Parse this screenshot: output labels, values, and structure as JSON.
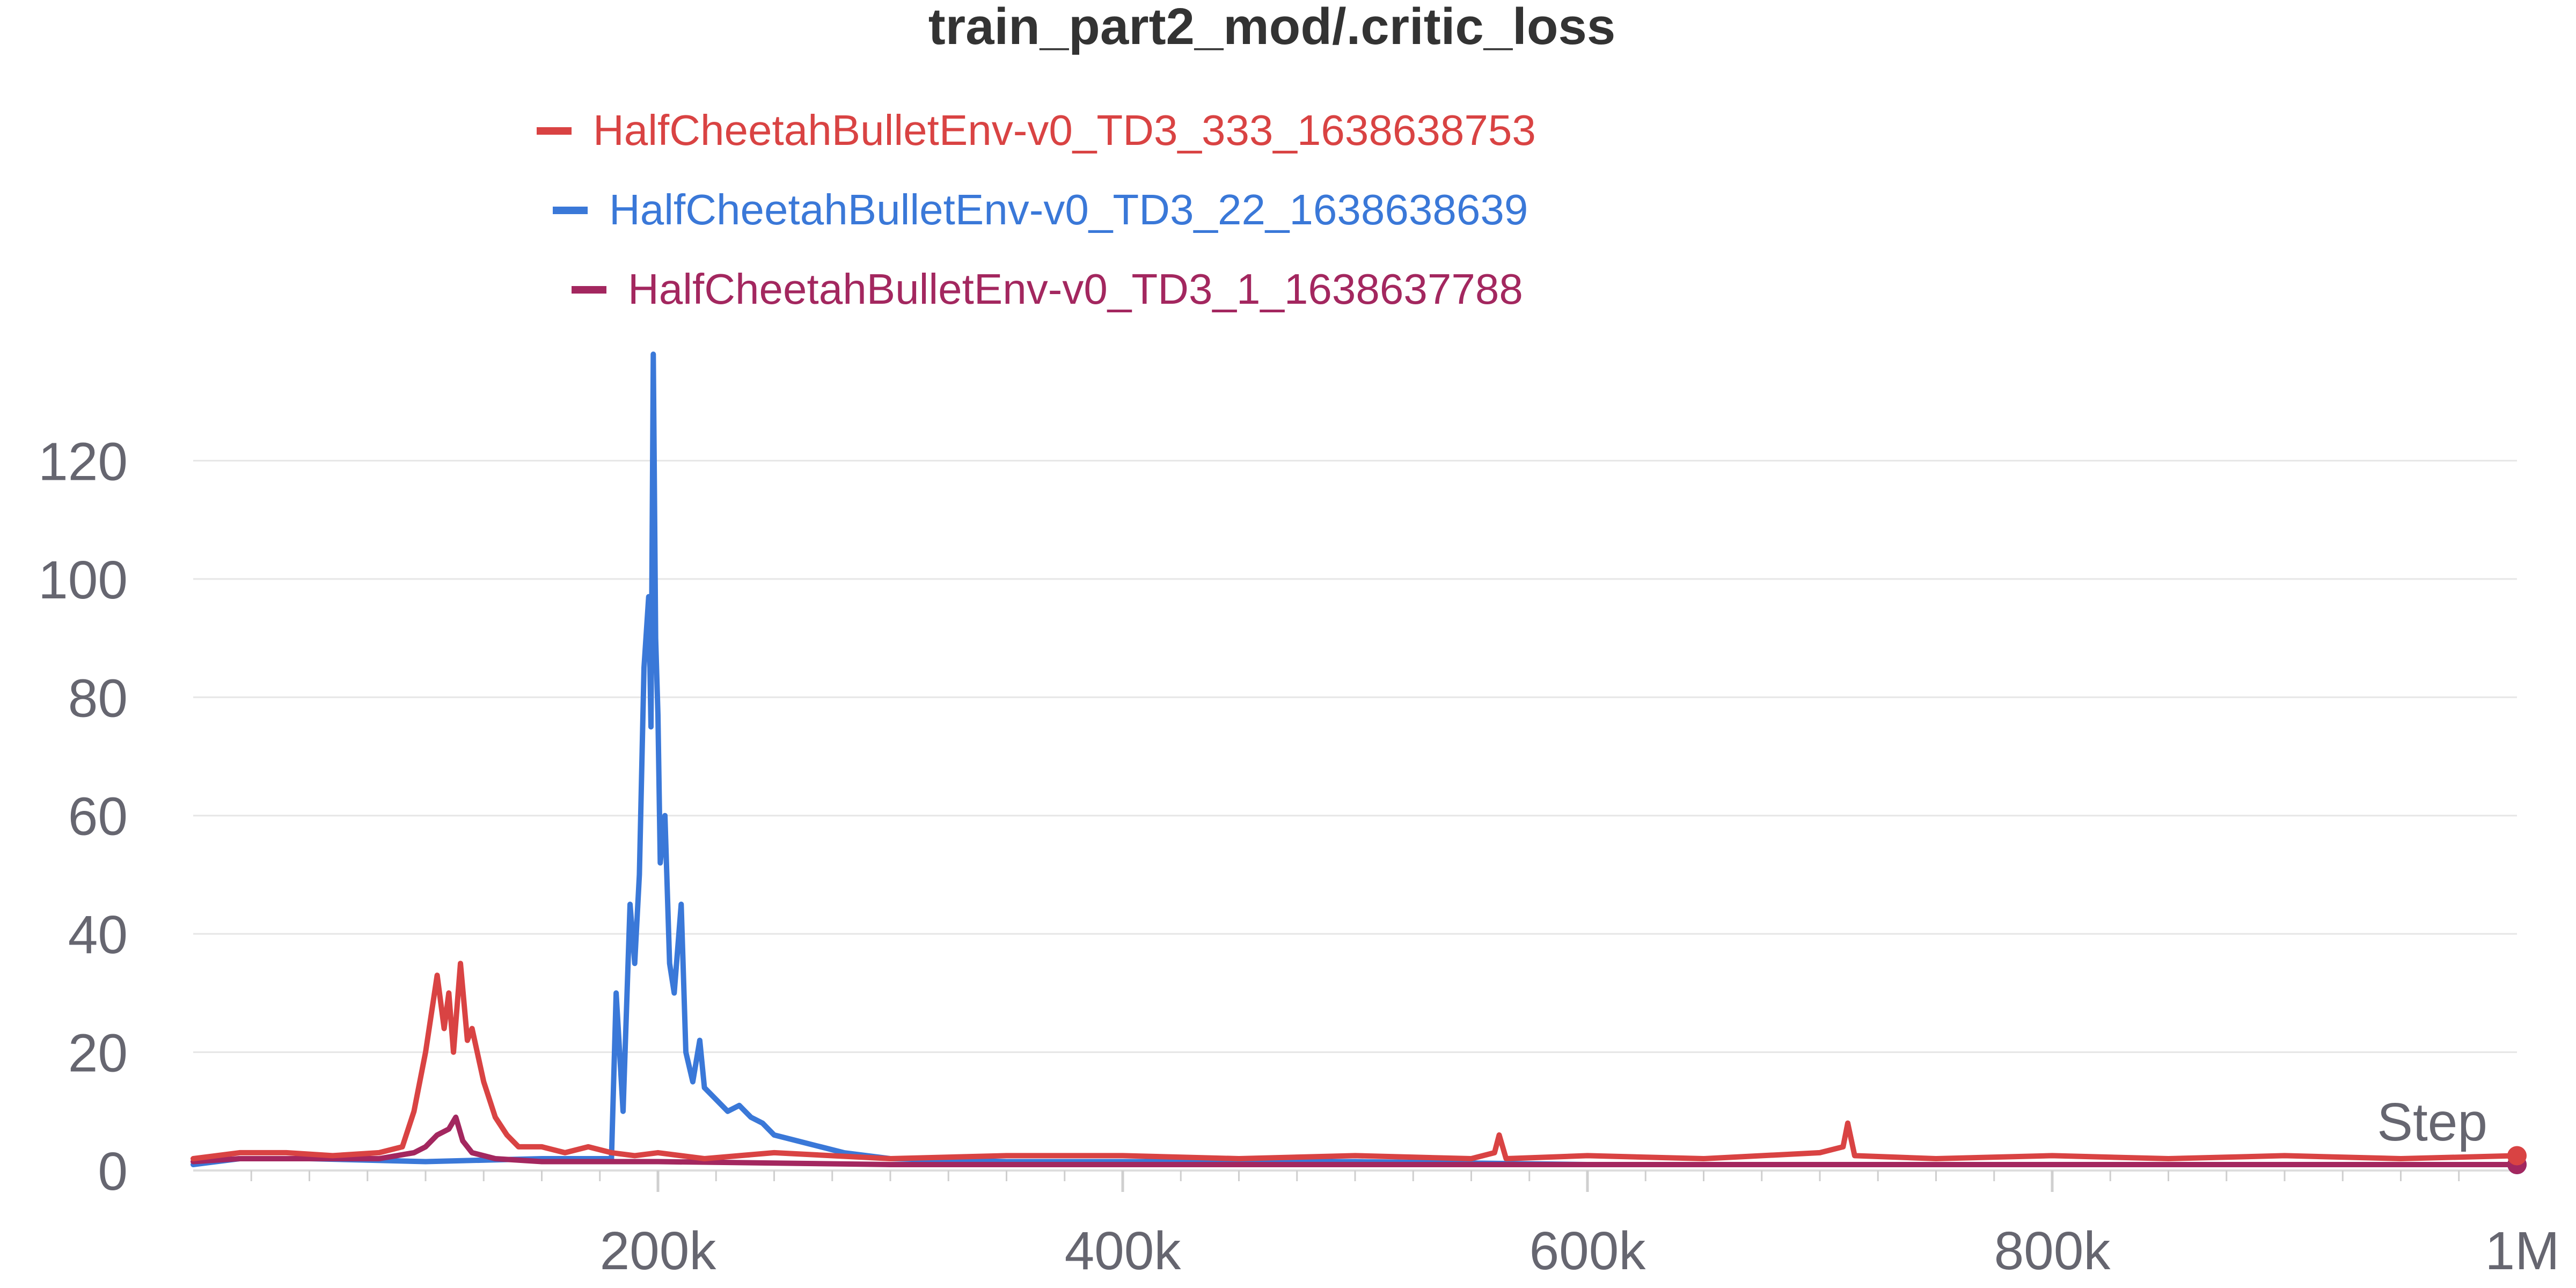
{
  "chart_data": {
    "type": "line",
    "title": "train_part2_mod/.critic_loss",
    "xlabel": "Step",
    "ylabel": "",
    "xlim": [
      0,
      1000000
    ],
    "ylim": [
      0,
      138
    ],
    "x_ticks": [
      200000,
      400000,
      600000,
      800000,
      1000000
    ],
    "x_tick_labels": [
      "200k",
      "400k",
      "600k",
      "800k",
      "1M"
    ],
    "y_ticks": [
      0,
      20,
      40,
      60,
      80,
      100,
      120
    ],
    "y_tick_labels": [
      "0",
      "20",
      "40",
      "60",
      "80",
      "100",
      "120"
    ],
    "grid": true,
    "legend_position": "top-center",
    "series": [
      {
        "name": "HalfCheetahBulletEnv-v0_TD3_333_1638638753",
        "color": "#d94343",
        "x": [
          0,
          20000,
          40000,
          60000,
          80000,
          90000,
          95000,
          100000,
          105000,
          108000,
          110000,
          112000,
          115000,
          118000,
          120000,
          125000,
          130000,
          135000,
          140000,
          150000,
          160000,
          170000,
          180000,
          190000,
          200000,
          220000,
          250000,
          300000,
          350000,
          400000,
          450000,
          500000,
          550000,
          560000,
          562000,
          565000,
          600000,
          650000,
          700000,
          710000,
          712000,
          715000,
          750000,
          800000,
          850000,
          900000,
          950000,
          1000000
        ],
        "y": [
          2,
          3,
          3,
          2.5,
          3,
          4,
          10,
          20,
          33,
          24,
          30,
          20,
          35,
          22,
          24,
          15,
          9,
          6,
          4,
          4,
          3,
          4,
          3,
          2.5,
          3,
          2,
          3,
          2,
          2.5,
          2.5,
          2,
          2.5,
          2,
          3,
          6,
          2,
          2.5,
          2,
          3,
          4,
          8,
          2.5,
          2,
          2.5,
          2,
          2.5,
          2,
          2.5
        ]
      },
      {
        "name": "HalfCheetahBulletEnv-v0_TD3_22_1638638639",
        "color": "#3a78d8",
        "x": [
          0,
          20000,
          50000,
          100000,
          150000,
          175000,
          180000,
          182000,
          185000,
          188000,
          190000,
          192000,
          194000,
          196000,
          197000,
          198000,
          199000,
          200000,
          201000,
          203000,
          205000,
          207000,
          210000,
          212000,
          215000,
          218000,
          220000,
          225000,
          230000,
          235000,
          240000,
          245000,
          250000,
          260000,
          270000,
          280000,
          290000,
          300000,
          350000,
          400000,
          500000,
          600000,
          700000,
          800000,
          900000,
          1000000
        ],
        "y": [
          1,
          2,
          2,
          1.5,
          2,
          2,
          2,
          30,
          10,
          45,
          35,
          50,
          85,
          97,
          75,
          138,
          90,
          77,
          52,
          60,
          35,
          30,
          45,
          20,
          15,
          22,
          14,
          12,
          10,
          11,
          9,
          8,
          6,
          5,
          4,
          3,
          2.5,
          2,
          1.5,
          1.5,
          1.5,
          1,
          1,
          1,
          1,
          1
        ]
      },
      {
        "name": "HalfCheetahBulletEnv-v0_TD3_1_1638637788",
        "color": "#a3275f",
        "x": [
          0,
          20000,
          50000,
          80000,
          95000,
          100000,
          105000,
          110000,
          113000,
          116000,
          120000,
          130000,
          150000,
          200000,
          300000,
          400000,
          500000,
          600000,
          700000,
          800000,
          900000,
          1000000
        ],
        "y": [
          1.5,
          2,
          2,
          2,
          3,
          4,
          6,
          7,
          9,
          5,
          3,
          2,
          1.5,
          1.5,
          1,
          1,
          1,
          1,
          1,
          1,
          1,
          1
        ]
      }
    ]
  }
}
